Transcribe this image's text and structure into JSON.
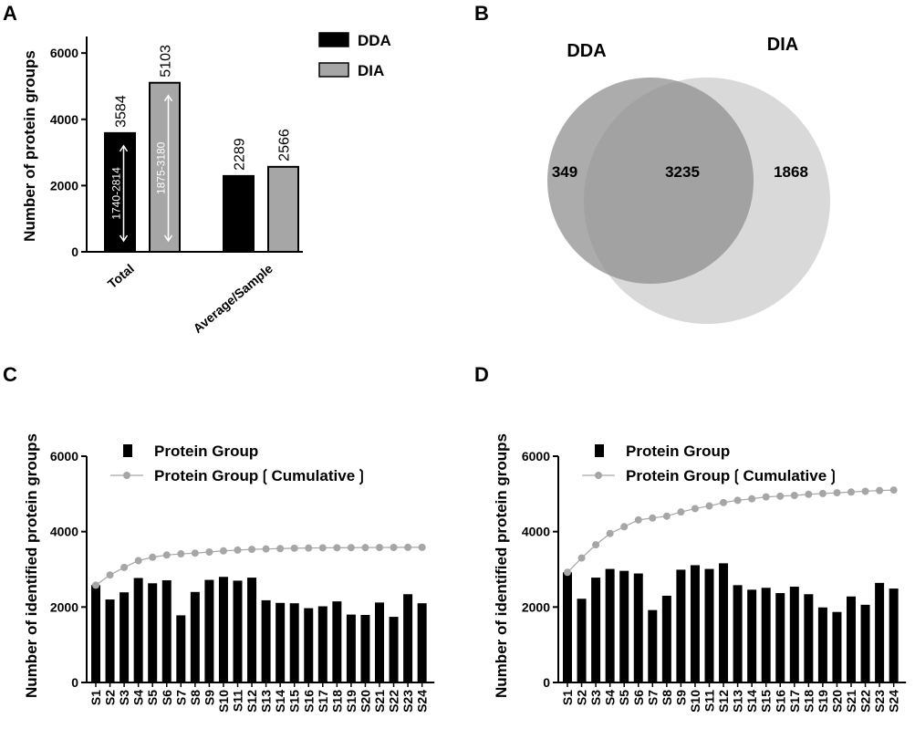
{
  "panels": [
    "A",
    "B",
    "C",
    "D"
  ],
  "chart_data": [
    {
      "id": "A",
      "type": "bar",
      "ylabel": "Number of protein groups",
      "ylim": [
        0,
        6500
      ],
      "yticks": [
        0,
        2000,
        4000,
        6000
      ],
      "categories": [
        "Total",
        "Average/Sample"
      ],
      "series": [
        {
          "name": "DDA",
          "color": "#000000",
          "values": [
            3584,
            2289
          ],
          "range_labels": [
            "1740-2814",
            ""
          ]
        },
        {
          "name": "DIA",
          "color": "#a6a6a6",
          "values": [
            5103,
            2566
          ],
          "range_labels": [
            "1875-3180",
            ""
          ]
        }
      ],
      "value_labels": [
        [
          "3584",
          "2289"
        ],
        [
          "5103",
          "2566"
        ]
      ],
      "legend": "top-right"
    },
    {
      "id": "B",
      "type": "venn",
      "sets": [
        {
          "name": "DDA",
          "color": "#8c8c8c"
        },
        {
          "name": "DIA",
          "color": "#d9d9d9"
        }
      ],
      "counts": {
        "dda_only": "349",
        "overlap": "3235",
        "dia_only": "1868"
      }
    },
    {
      "id": "C",
      "type": "bar",
      "ylabel": "Number of identified protein groups",
      "ylim": [
        0,
        6000
      ],
      "yticks": [
        0,
        2000,
        4000,
        6000
      ],
      "categories": [
        "S1",
        "S2",
        "S3",
        "S4",
        "S5",
        "S6",
        "S7",
        "S8",
        "S9",
        "S10",
        "S11",
        "S12",
        "S13",
        "S14",
        "S15",
        "S16",
        "S17",
        "S18",
        "S19",
        "S20",
        "S21",
        "S22",
        "S23",
        "S24"
      ],
      "series": [
        {
          "name": "Protein Group",
          "type": "bar",
          "color": "#000000",
          "values": [
            2580,
            2200,
            2390,
            2770,
            2630,
            2710,
            1780,
            2400,
            2720,
            2800,
            2700,
            2780,
            2180,
            2110,
            2100,
            1970,
            2020,
            2150,
            1800,
            1790,
            2120,
            1740,
            2340,
            2100
          ]
        },
        {
          "name": "Protein Group❲Cumulative❳",
          "type": "line",
          "color": "#a6a6a6",
          "values": [
            2580,
            2850,
            3050,
            3230,
            3320,
            3380,
            3410,
            3430,
            3460,
            3490,
            3510,
            3530,
            3540,
            3550,
            3560,
            3565,
            3570,
            3572,
            3575,
            3577,
            3579,
            3581,
            3583,
            3584
          ]
        }
      ],
      "legend": "top-left"
    },
    {
      "id": "D",
      "type": "bar",
      "ylabel": "Number of identified protein groups",
      "ylim": [
        0,
        6000
      ],
      "yticks": [
        0,
        2000,
        4000,
        6000
      ],
      "categories": [
        "S1",
        "S2",
        "S3",
        "S4",
        "S5",
        "S6",
        "S7",
        "S8",
        "S9",
        "S10",
        "S11",
        "S12",
        "S13",
        "S14",
        "S15",
        "S16",
        "S17",
        "S18",
        "S19",
        "S20",
        "S21",
        "S22",
        "S23",
        "S24"
      ],
      "series": [
        {
          "name": "Protein Group",
          "type": "bar",
          "color": "#000000",
          "values": [
            2920,
            2220,
            2780,
            3010,
            2960,
            2890,
            1920,
            2300,
            2990,
            3110,
            3010,
            3160,
            2580,
            2460,
            2510,
            2370,
            2540,
            2340,
            1990,
            1870,
            2280,
            2060,
            2640,
            2490
          ]
        },
        {
          "name": "Protein Group❲Cumulative❳",
          "type": "line",
          "color": "#a6a6a6",
          "values": [
            2920,
            3300,
            3650,
            3950,
            4130,
            4310,
            4360,
            4410,
            4520,
            4610,
            4680,
            4770,
            4830,
            4870,
            4920,
            4940,
            4960,
            4990,
            5010,
            5030,
            5050,
            5070,
            5090,
            5103
          ]
        }
      ],
      "legend": "top-left"
    }
  ]
}
